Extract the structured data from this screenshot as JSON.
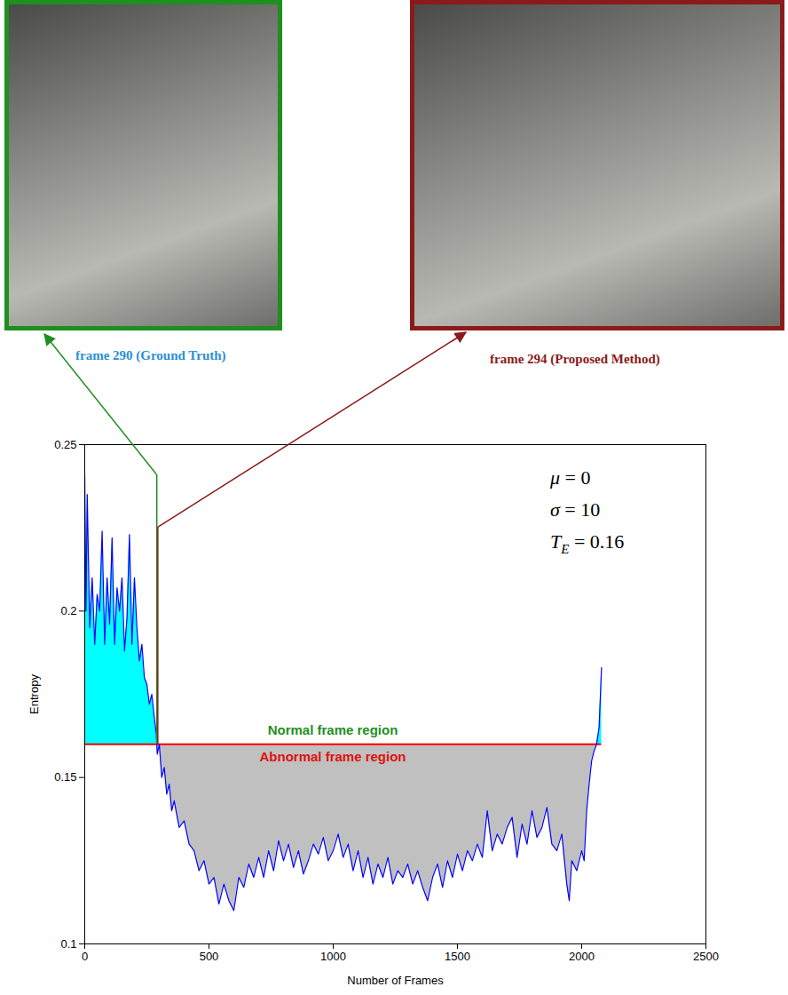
{
  "chart_data": {
    "type": "line",
    "xlabel": "Number of Frames",
    "ylabel": "Entropy",
    "xlim": [
      0,
      2500
    ],
    "xticks": [
      0,
      500,
      1000,
      1500,
      2000,
      2500
    ],
    "ylim": [
      0.1,
      0.25
    ],
    "yticks": [
      0.1,
      0.15,
      0.2,
      0.25
    ],
    "color": "#0000ff",
    "x": [
      0,
      5,
      10,
      20,
      30,
      40,
      50,
      60,
      70,
      80,
      90,
      100,
      110,
      120,
      130,
      140,
      150,
      160,
      170,
      180,
      190,
      200,
      210,
      220,
      230,
      240,
      250,
      260,
      270,
      280,
      288,
      292,
      300,
      310,
      320,
      330,
      340,
      350,
      360,
      380,
      400,
      420,
      440,
      460,
      480,
      500,
      520,
      540,
      560,
      580,
      600,
      620,
      640,
      660,
      680,
      700,
      720,
      740,
      760,
      780,
      800,
      820,
      840,
      860,
      880,
      900,
      920,
      940,
      960,
      980,
      1000,
      1020,
      1040,
      1060,
      1080,
      1100,
      1120,
      1140,
      1160,
      1180,
      1200,
      1220,
      1240,
      1260,
      1280,
      1300,
      1320,
      1340,
      1360,
      1380,
      1400,
      1420,
      1440,
      1460,
      1480,
      1500,
      1520,
      1540,
      1560,
      1580,
      1600,
      1620,
      1640,
      1660,
      1680,
      1700,
      1720,
      1740,
      1760,
      1780,
      1800,
      1820,
      1840,
      1860,
      1880,
      1900,
      1920,
      1940,
      1950,
      1960,
      1980,
      2000,
      2010,
      2020,
      2030,
      2040,
      2050,
      2060,
      2070,
      2080
    ],
    "values": [
      0.241,
      0.2,
      0.235,
      0.195,
      0.21,
      0.19,
      0.205,
      0.2,
      0.224,
      0.19,
      0.21,
      0.196,
      0.222,
      0.19,
      0.207,
      0.2,
      0.21,
      0.188,
      0.198,
      0.223,
      0.19,
      0.21,
      0.195,
      0.185,
      0.19,
      0.18,
      0.178,
      0.172,
      0.175,
      0.168,
      0.163,
      0.157,
      0.16,
      0.15,
      0.153,
      0.145,
      0.148,
      0.14,
      0.143,
      0.135,
      0.137,
      0.13,
      0.128,
      0.122,
      0.125,
      0.118,
      0.12,
      0.112,
      0.118,
      0.113,
      0.11,
      0.12,
      0.117,
      0.124,
      0.12,
      0.126,
      0.12,
      0.128,
      0.122,
      0.131,
      0.125,
      0.13,
      0.123,
      0.128,
      0.121,
      0.125,
      0.13,
      0.127,
      0.132,
      0.125,
      0.128,
      0.133,
      0.126,
      0.13,
      0.122,
      0.128,
      0.12,
      0.126,
      0.118,
      0.124,
      0.12,
      0.126,
      0.118,
      0.122,
      0.12,
      0.124,
      0.118,
      0.122,
      0.117,
      0.113,
      0.12,
      0.124,
      0.117,
      0.125,
      0.12,
      0.127,
      0.122,
      0.128,
      0.125,
      0.13,
      0.126,
      0.14,
      0.128,
      0.133,
      0.13,
      0.135,
      0.138,
      0.126,
      0.136,
      0.13,
      0.14,
      0.132,
      0.135,
      0.141,
      0.13,
      0.128,
      0.133,
      0.118,
      0.113,
      0.125,
      0.122,
      0.128,
      0.125,
      0.14,
      0.148,
      0.155,
      0.158,
      0.16,
      0.165,
      0.183
    ],
    "parameters": [
      {
        "symbol": "μ",
        "value": 0
      },
      {
        "symbol": "σ",
        "value": 10
      },
      {
        "symbol": "T",
        "subscript": "E",
        "value": 0.16
      }
    ],
    "regions": [
      {
        "label": "Normal frame region",
        "color": "#1f8f1f"
      },
      {
        "label": "Abnormal frame region",
        "color": "#e01010"
      }
    ],
    "markers": [
      {
        "frame": 290,
        "top": 0.241,
        "label": "frame 290 (Ground Truth)",
        "color": "#1f8f1f"
      },
      {
        "frame": 294,
        "top": 0.225,
        "label": "frame 294 (Proposed Method)",
        "color": "#8b1a1a"
      }
    ]
  }
}
